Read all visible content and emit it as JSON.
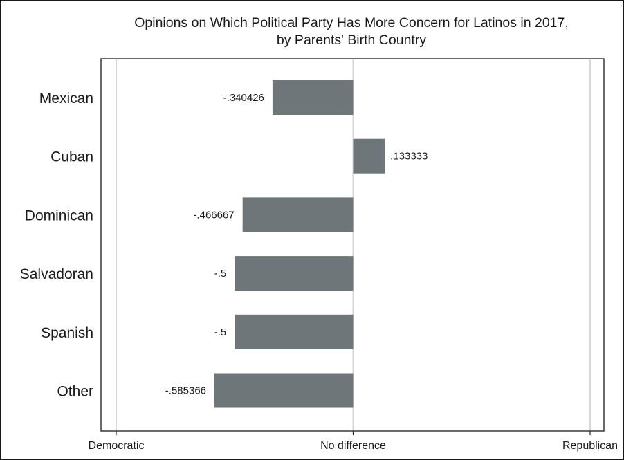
{
  "chart_data": {
    "type": "bar",
    "orientation": "horizontal",
    "title_lines": [
      "Opinions on Which Political Party Has More Concern for Latinos in 2017,",
      "by Parents' Birth Country"
    ],
    "categories": [
      "Mexican",
      "Cuban",
      "Dominican",
      "Salvadoran",
      "Spanish",
      "Other"
    ],
    "values": [
      -0.340426,
      0.133333,
      -0.466667,
      -0.5,
      -0.5,
      -0.585366
    ],
    "value_labels": [
      "-.340426",
      ".133333",
      "-.466667",
      "-.5",
      "-.5",
      "-.585366"
    ],
    "xlim": [
      -1,
      1
    ],
    "x_ticks": [
      {
        "value": -1,
        "label": "Democratic"
      },
      {
        "value": 0,
        "label": "No difference"
      },
      {
        "value": 1,
        "label": "Republican"
      }
    ],
    "grid": true,
    "colors": {
      "bar": "#6e7679",
      "gridline": "#d0d4d6",
      "axis": "#1a1a1a"
    }
  }
}
